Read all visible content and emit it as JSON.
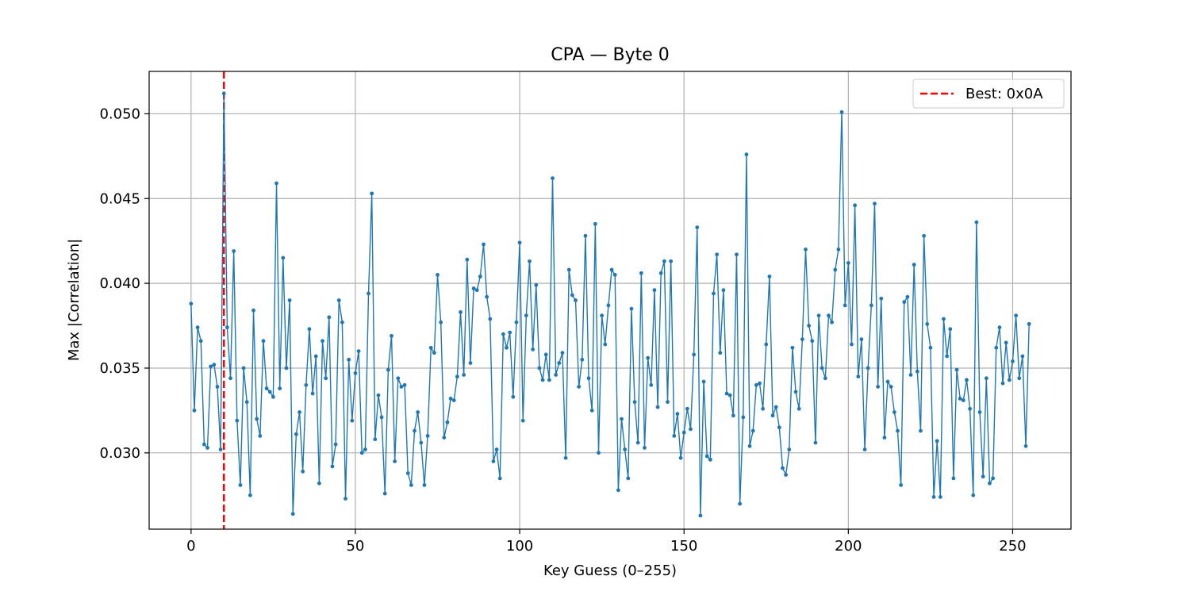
{
  "chart_data": {
    "type": "line",
    "title": "CPA — Byte 0",
    "xlabel": "Key Guess (0–255)",
    "ylabel": "Max |Correlation|",
    "xlim": [
      -12.75,
      267.75
    ],
    "ylim": [
      0.0255,
      0.0525
    ],
    "xticks": [
      0,
      50,
      100,
      150,
      200,
      250
    ],
    "xtick_labels": [
      "0",
      "50",
      "100",
      "150",
      "200",
      "250"
    ],
    "yticks": [
      0.03,
      0.035,
      0.04,
      0.045,
      0.05
    ],
    "ytick_labels": [
      "0.030",
      "0.035",
      "0.040",
      "0.045",
      "0.050"
    ],
    "grid": true,
    "legend_position": "top-right",
    "series": [
      {
        "color": "#1f77b4",
        "marker": "dot",
        "x_start": 0,
        "values": [
          0.0388,
          0.0325,
          0.0374,
          0.0366,
          0.0305,
          0.0303,
          0.0351,
          0.0352,
          0.0339,
          0.0302,
          0.0512,
          0.0374,
          0.0344,
          0.0419,
          0.0319,
          0.0281,
          0.035,
          0.033,
          0.0275,
          0.0384,
          0.032,
          0.031,
          0.0366,
          0.0338,
          0.0336,
          0.0333,
          0.0459,
          0.0338,
          0.0415,
          0.035,
          0.039,
          0.0264,
          0.0311,
          0.0324,
          0.0289,
          0.034,
          0.0373,
          0.0335,
          0.0357,
          0.0282,
          0.0366,
          0.0344,
          0.038,
          0.0292,
          0.0305,
          0.039,
          0.0377,
          0.0273,
          0.0355,
          0.0319,
          0.0347,
          0.036,
          0.03,
          0.0302,
          0.0394,
          0.0453,
          0.0308,
          0.0334,
          0.0321,
          0.0276,
          0.0349,
          0.0369,
          0.0295,
          0.0344,
          0.0339,
          0.034,
          0.0288,
          0.0281,
          0.0313,
          0.0324,
          0.0306,
          0.0281,
          0.031,
          0.0362,
          0.0359,
          0.0405,
          0.0377,
          0.0309,
          0.0318,
          0.0332,
          0.0331,
          0.0345,
          0.0383,
          0.0346,
          0.0414,
          0.0353,
          0.0397,
          0.0396,
          0.0404,
          0.0423,
          0.0392,
          0.0379,
          0.0295,
          0.0302,
          0.0285,
          0.037,
          0.0362,
          0.0371,
          0.0333,
          0.0377,
          0.0424,
          0.0319,
          0.0381,
          0.0413,
          0.0361,
          0.0399,
          0.035,
          0.0343,
          0.0358,
          0.0343,
          0.0462,
          0.0346,
          0.0353,
          0.0359,
          0.0297,
          0.0408,
          0.0393,
          0.039,
          0.0339,
          0.0355,
          0.0428,
          0.0344,
          0.0325,
          0.0435,
          0.03,
          0.0381,
          0.0364,
          0.0387,
          0.0408,
          0.0405,
          0.0278,
          0.032,
          0.0302,
          0.0285,
          0.0385,
          0.033,
          0.0306,
          0.0406,
          0.0303,
          0.0356,
          0.034,
          0.0396,
          0.0327,
          0.0406,
          0.0413,
          0.033,
          0.0413,
          0.031,
          0.0323,
          0.0297,
          0.0312,
          0.0326,
          0.0314,
          0.0358,
          0.0433,
          0.0263,
          0.0342,
          0.0298,
          0.0296,
          0.0394,
          0.0417,
          0.0359,
          0.0396,
          0.0335,
          0.0334,
          0.0322,
          0.0417,
          0.027,
          0.0321,
          0.0476,
          0.0304,
          0.0313,
          0.034,
          0.0341,
          0.0326,
          0.0364,
          0.0404,
          0.0322,
          0.0327,
          0.0315,
          0.0291,
          0.0287,
          0.0302,
          0.0362,
          0.0336,
          0.0326,
          0.0367,
          0.042,
          0.0375,
          0.0366,
          0.0306,
          0.0381,
          0.035,
          0.0344,
          0.0381,
          0.0377,
          0.0408,
          0.042,
          0.0501,
          0.0387,
          0.0412,
          0.0364,
          0.0446,
          0.0345,
          0.0367,
          0.0302,
          0.035,
          0.0387,
          0.0447,
          0.0339,
          0.0391,
          0.0309,
          0.0342,
          0.0339,
          0.0324,
          0.0313,
          0.0281,
          0.0389,
          0.0392,
          0.0346,
          0.0411,
          0.0348,
          0.0313,
          0.0428,
          0.0376,
          0.0362,
          0.0274,
          0.0307,
          0.0274,
          0.0379,
          0.0357,
          0.0373,
          0.0285,
          0.0349,
          0.0332,
          0.0331,
          0.0343,
          0.0326,
          0.0275,
          0.0436,
          0.0324,
          0.0286,
          0.0344,
          0.0282,
          0.0285,
          0.0362,
          0.0374,
          0.0341,
          0.0365,
          0.0343,
          0.0354,
          0.0381,
          0.0344,
          0.0357,
          0.0304,
          0.0376
        ]
      }
    ],
    "annotations": [
      {
        "type": "vline",
        "x": 10,
        "color": "#ff0000",
        "style": "dashed",
        "label": "Best: 0x0A"
      }
    ]
  }
}
